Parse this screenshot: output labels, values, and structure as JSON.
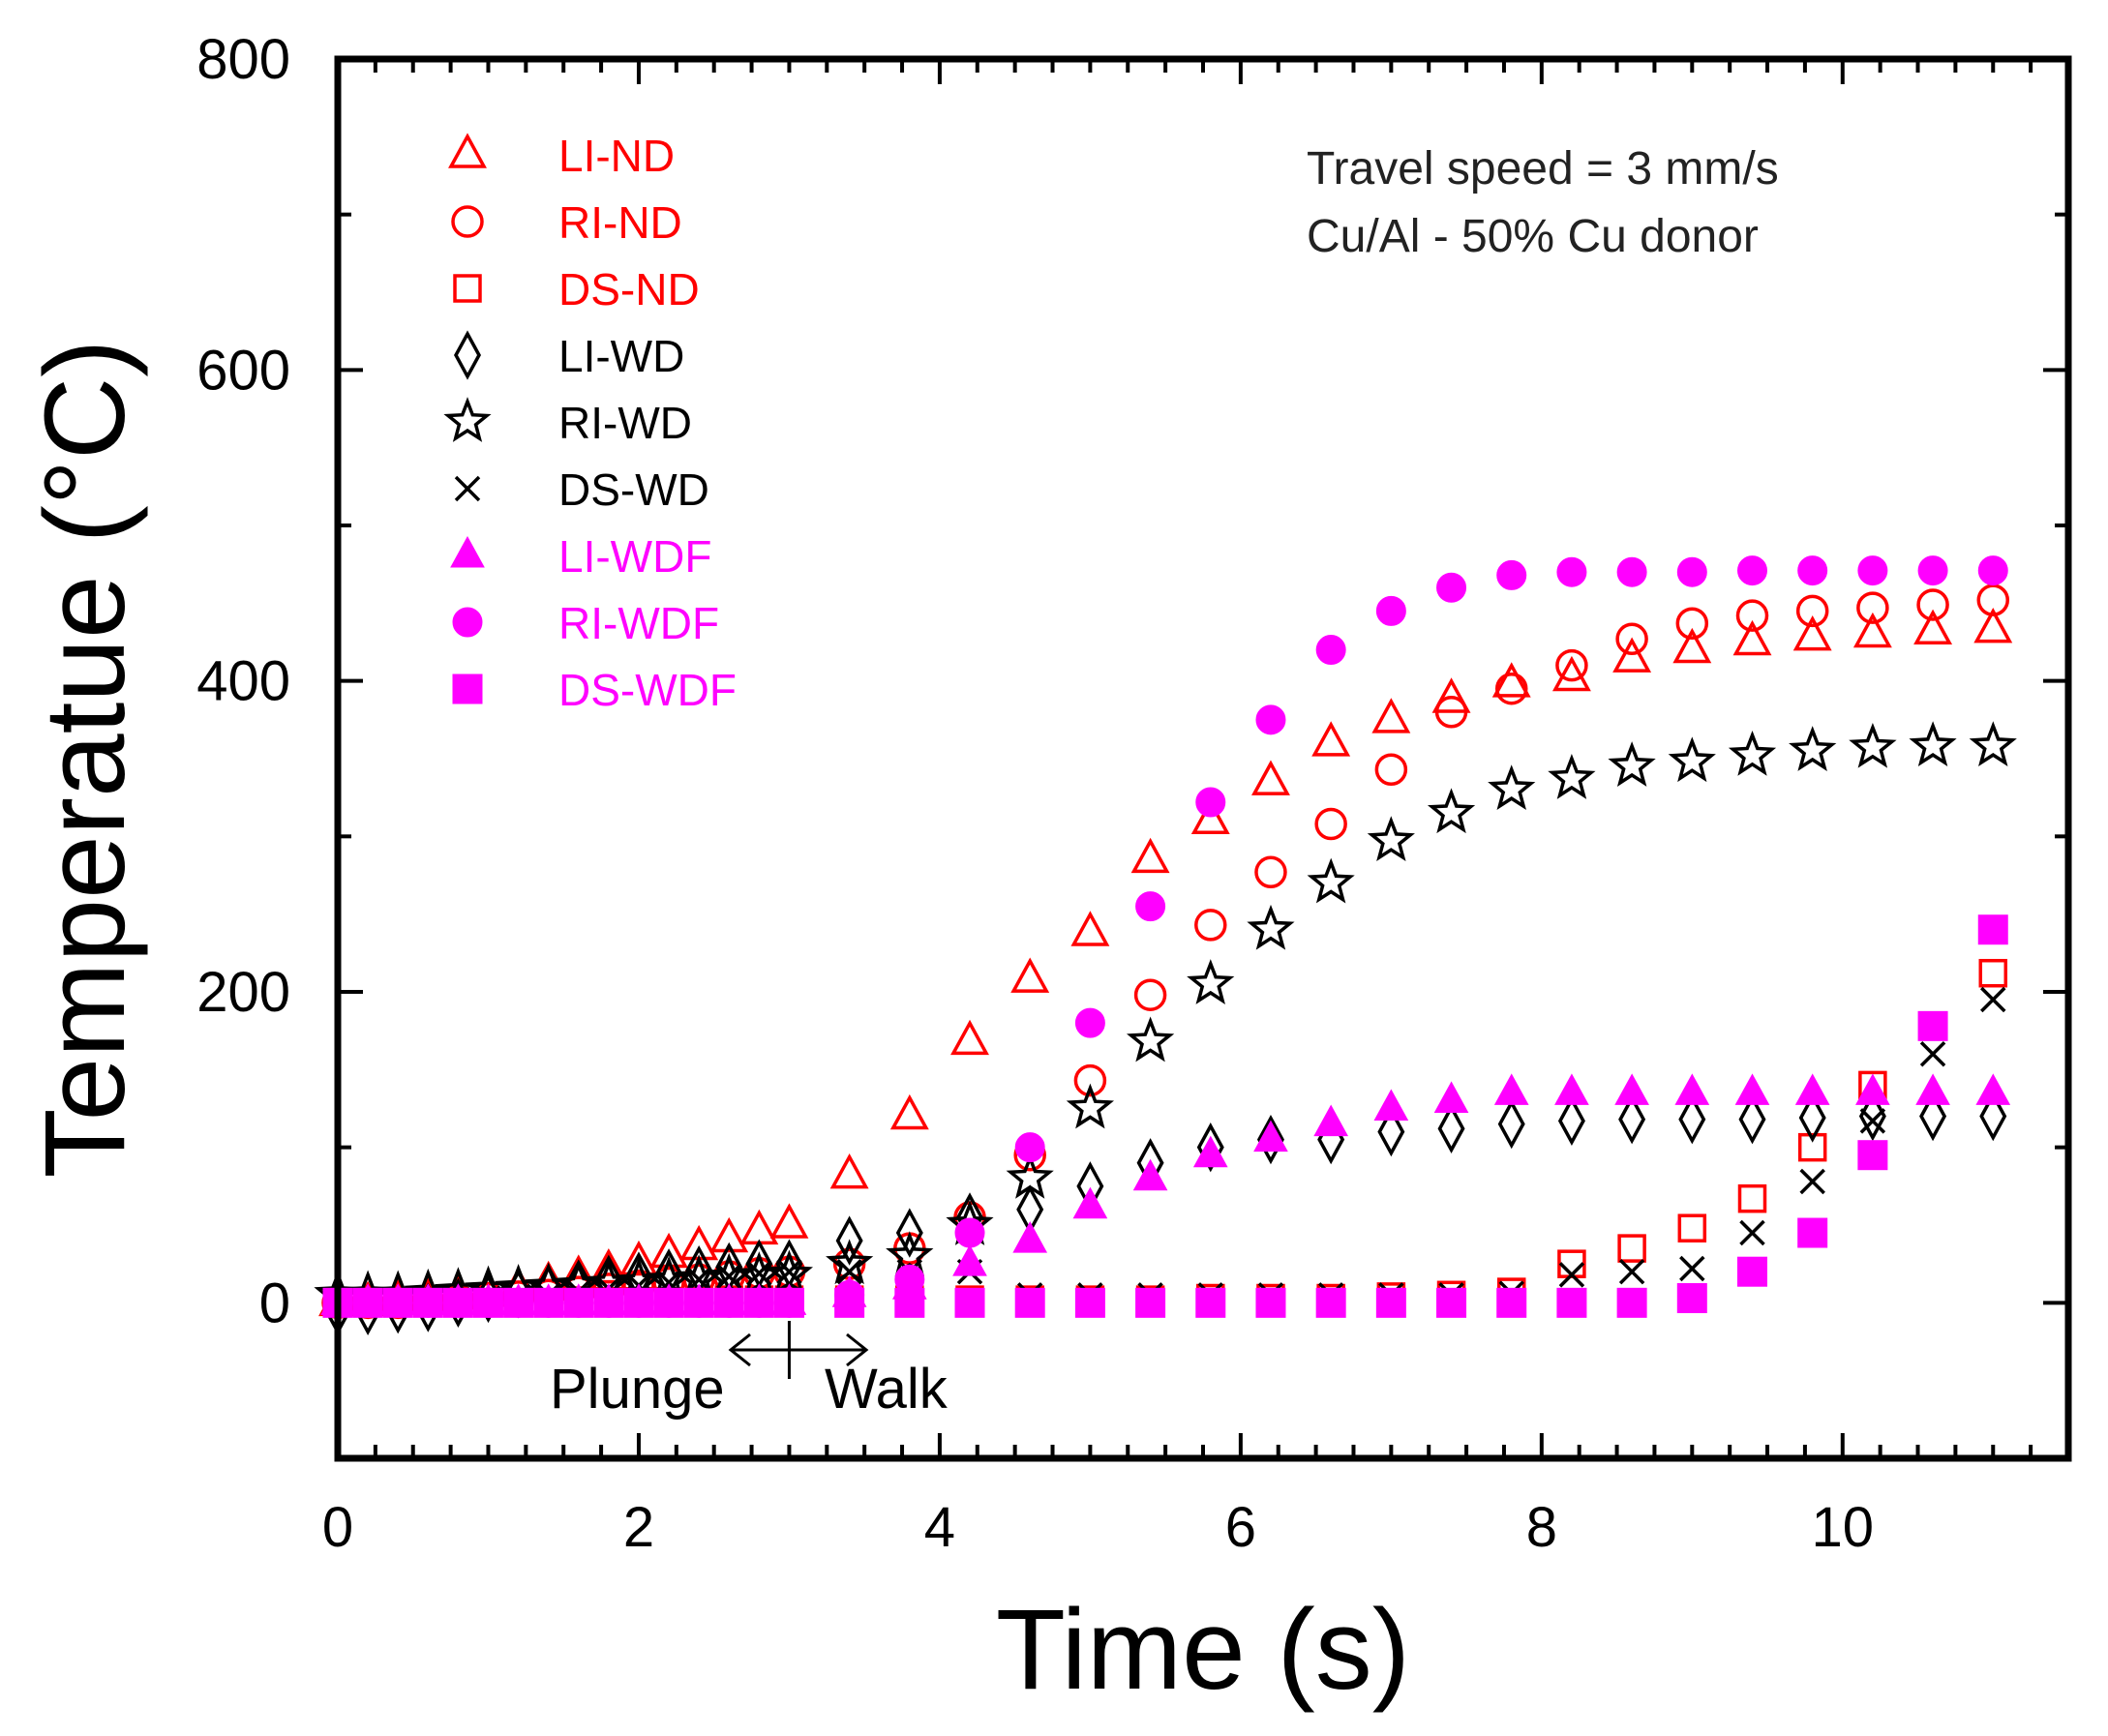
{
  "chart_data": {
    "type": "scatter",
    "xlabel": "Time (s)",
    "ylabel": "Temperatue (°C)",
    "xlim": [
      0,
      11.5
    ],
    "ylim": [
      -100,
      800
    ],
    "xticks": [
      0,
      2,
      4,
      6,
      8,
      10
    ],
    "yticks": [
      0,
      200,
      400,
      600,
      800
    ],
    "annotations": [
      "Travel speed = 3 mm/s",
      "Cu/Al - 50% Cu donor"
    ],
    "phases": {
      "plunge": "Plunge",
      "walk": "Walk",
      "boundary_time": 3.0
    },
    "legend_position": "top-left",
    "series": [
      {
        "name": "LI-ND",
        "marker": "triangle-open",
        "color": "#ff0000",
        "x": [
          0,
          0.2,
          0.4,
          0.6,
          0.8,
          1.0,
          1.2,
          1.4,
          1.6,
          1.8,
          2.0,
          2.2,
          2.4,
          2.6,
          2.8,
          3.0,
          3.4,
          3.8,
          4.2,
          4.6,
          5.0,
          5.4,
          5.8,
          6.2,
          6.6,
          7.0,
          7.4,
          7.8,
          8.2,
          8.6,
          9.0,
          9.4,
          9.8,
          10.2,
          10.6,
          11.0
        ],
        "y": [
          0,
          0,
          1,
          2,
          4,
          6,
          9,
          13,
          17,
          21,
          26,
          31,
          36,
          41,
          46,
          50,
          82,
          120,
          168,
          208,
          238,
          285,
          310,
          335,
          360,
          375,
          388,
          398,
          402,
          414,
          420,
          425,
          428,
          430,
          432,
          433
        ]
      },
      {
        "name": "RI-ND",
        "marker": "circle-open",
        "color": "#ff0000",
        "x": [
          0,
          0.2,
          0.4,
          0.6,
          0.8,
          1.0,
          1.2,
          1.4,
          1.6,
          1.8,
          2.0,
          2.2,
          2.4,
          2.6,
          2.8,
          3.0,
          3.4,
          3.8,
          4.2,
          4.6,
          5.0,
          5.4,
          5.8,
          6.2,
          6.6,
          7.0,
          7.4,
          7.8,
          8.2,
          8.6,
          9.0,
          9.4,
          9.8,
          10.2,
          10.6,
          11.0
        ],
        "y": [
          0,
          0,
          0,
          1,
          2,
          3,
          4,
          5,
          7,
          9,
          11,
          13,
          15,
          17,
          19,
          20,
          25,
          35,
          55,
          95,
          143,
          198,
          243,
          277,
          308,
          343,
          380,
          395,
          410,
          427,
          437,
          442,
          445,
          447,
          449,
          452
        ]
      },
      {
        "name": "DS-ND",
        "marker": "square-open",
        "color": "#ff0000",
        "x": [
          0,
          0.2,
          0.4,
          0.6,
          0.8,
          1.0,
          1.2,
          1.4,
          1.6,
          1.8,
          2.0,
          2.2,
          2.4,
          2.6,
          2.8,
          3.0,
          3.4,
          3.8,
          4.2,
          4.6,
          5.0,
          5.4,
          5.8,
          6.2,
          6.6,
          7.0,
          7.4,
          7.8,
          8.2,
          8.6,
          9.0,
          9.4,
          9.8,
          10.2,
          10.6,
          11.0
        ],
        "y": [
          0,
          0,
          0,
          0,
          0,
          0,
          0,
          0,
          1,
          1,
          1,
          1,
          1,
          2,
          2,
          2,
          2,
          2,
          2,
          2,
          2,
          2,
          3,
          3,
          3,
          4,
          5,
          7,
          25,
          35,
          48,
          67,
          100,
          140,
          178,
          212
        ]
      },
      {
        "name": "LI-WD",
        "marker": "diamond-open",
        "color": "#000000",
        "x": [
          0,
          0.2,
          0.4,
          0.6,
          0.8,
          1.0,
          1.2,
          1.4,
          1.6,
          1.8,
          2.0,
          2.2,
          2.4,
          2.6,
          2.8,
          3.0,
          3.4,
          3.8,
          4.2,
          4.6,
          5.0,
          5.4,
          5.8,
          6.2,
          6.6,
          7.0,
          7.4,
          7.8,
          8.2,
          8.6,
          9.0,
          9.4,
          9.8,
          10.2,
          10.6,
          11.0
        ],
        "y": [
          -5,
          -5,
          -4,
          -3,
          0,
          3,
          6,
          9,
          12,
          15,
          17,
          19,
          21,
          23,
          25,
          25,
          40,
          45,
          55,
          60,
          75,
          90,
          100,
          105,
          105,
          110,
          112,
          115,
          117,
          118,
          118,
          118,
          119,
          120,
          120,
          120
        ]
      },
      {
        "name": "RI-WD",
        "marker": "star-open",
        "color": "#000000",
        "x": [
          0,
          0.2,
          0.4,
          0.6,
          0.8,
          1.0,
          1.2,
          1.4,
          1.6,
          1.8,
          2.0,
          2.2,
          2.4,
          2.6,
          2.8,
          3.0,
          3.4,
          3.8,
          4.2,
          4.6,
          5.0,
          5.4,
          5.8,
          6.2,
          6.6,
          7.0,
          7.4,
          7.8,
          8.2,
          8.6,
          9.0,
          9.4,
          9.8,
          10.2,
          10.6,
          11.0
        ],
        "y": [
          5,
          5,
          5,
          6,
          7,
          8,
          9,
          10,
          11,
          12,
          13,
          14,
          15,
          16,
          17,
          18,
          25,
          30,
          50,
          80,
          125,
          168,
          205,
          240,
          270,
          297,
          315,
          330,
          337,
          345,
          348,
          352,
          355,
          357,
          358,
          358
        ]
      },
      {
        "name": "DS-WD",
        "marker": "x",
        "color": "#000000",
        "x": [
          0,
          0.2,
          0.4,
          0.6,
          0.8,
          1.0,
          1.2,
          1.4,
          1.6,
          1.8,
          2.0,
          2.2,
          2.4,
          2.6,
          2.8,
          3.0,
          3.4,
          3.8,
          4.2,
          4.6,
          5.0,
          5.4,
          5.8,
          6.2,
          6.6,
          7.0,
          7.4,
          7.8,
          8.2,
          8.6,
          9.0,
          9.4,
          9.8,
          10.2,
          10.6,
          11.0
        ],
        "y": [
          0,
          0,
          0,
          1,
          2,
          3,
          4,
          5,
          7,
          9,
          11,
          13,
          15,
          17,
          19,
          20,
          20,
          20,
          20,
          5,
          5,
          5,
          5,
          5,
          5,
          5,
          5,
          6,
          18,
          20,
          22,
          45,
          78,
          117,
          160,
          195
        ]
      },
      {
        "name": "LI-WDF",
        "marker": "triangle-filled",
        "color": "#ff00ff",
        "x": [
          0,
          0.2,
          0.4,
          0.6,
          0.8,
          1.0,
          1.2,
          1.4,
          1.6,
          1.8,
          2.0,
          2.2,
          2.4,
          2.6,
          2.8,
          3.0,
          3.4,
          3.8,
          4.2,
          4.6,
          5.0,
          5.4,
          5.8,
          6.2,
          6.6,
          7.0,
          7.4,
          7.8,
          8.2,
          8.6,
          9.0,
          9.4,
          9.8,
          10.2,
          10.6,
          11.0
        ],
        "y": [
          0,
          0,
          0,
          0,
          0,
          0,
          0,
          0,
          0,
          0,
          0,
          0,
          0,
          0,
          0,
          0,
          5,
          10,
          25,
          40,
          62,
          80,
          95,
          105,
          115,
          125,
          130,
          135,
          135,
          135,
          135,
          135,
          135,
          135,
          135,
          135
        ]
      },
      {
        "name": "RI-WDF",
        "marker": "circle-filled",
        "color": "#ff00ff",
        "x": [
          0,
          0.2,
          0.4,
          0.6,
          0.8,
          1.0,
          1.2,
          1.4,
          1.6,
          1.8,
          2.0,
          2.2,
          2.4,
          2.6,
          2.8,
          3.0,
          3.4,
          3.8,
          4.2,
          4.6,
          5.0,
          5.4,
          5.8,
          6.2,
          6.6,
          7.0,
          7.4,
          7.8,
          8.2,
          8.6,
          9.0,
          9.4,
          9.8,
          10.2,
          10.6,
          11.0
        ],
        "y": [
          0,
          0,
          0,
          0,
          0,
          0,
          0,
          0,
          0,
          0,
          0,
          0,
          0,
          0,
          0,
          0,
          5,
          15,
          45,
          100,
          180,
          255,
          322,
          375,
          420,
          445,
          460,
          468,
          470,
          470,
          470,
          471,
          471,
          471,
          471,
          471
        ]
      },
      {
        "name": "DS-WDF",
        "marker": "square-filled",
        "color": "#ff00ff",
        "x": [
          0,
          0.2,
          0.4,
          0.6,
          0.8,
          1.0,
          1.2,
          1.4,
          1.6,
          1.8,
          2.0,
          2.2,
          2.4,
          2.6,
          2.8,
          3.0,
          3.4,
          3.8,
          4.2,
          4.6,
          5.0,
          5.4,
          5.8,
          6.2,
          6.6,
          7.0,
          7.4,
          7.8,
          8.2,
          8.6,
          9.0,
          9.4,
          9.8,
          10.2,
          10.6,
          11.0
        ],
        "y": [
          0,
          0,
          0,
          0,
          0,
          0,
          0,
          0,
          0,
          0,
          0,
          0,
          0,
          0,
          0,
          0,
          0,
          0,
          0,
          0,
          0,
          0,
          0,
          0,
          0,
          0,
          0,
          0,
          0,
          0,
          3,
          20,
          45,
          95,
          178,
          240
        ]
      }
    ]
  }
}
